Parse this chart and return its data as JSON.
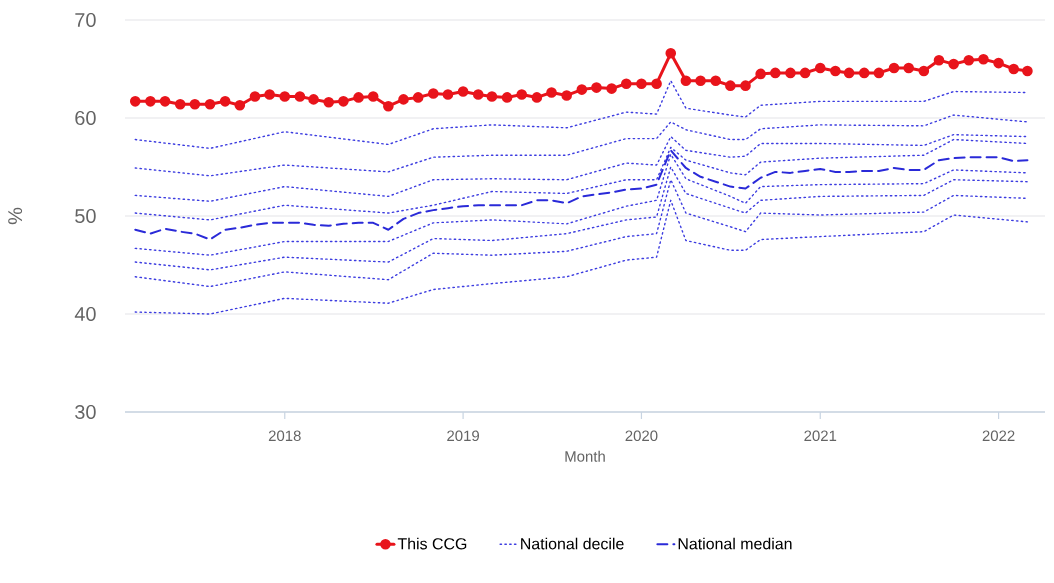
{
  "chart_data": {
    "type": "line",
    "xlabel": "Month",
    "ylabel": "%",
    "x": [
      "2017-03",
      "2017-04",
      "2017-05",
      "2017-06",
      "2017-07",
      "2017-08",
      "2017-09",
      "2017-10",
      "2017-11",
      "2017-12",
      "2018-01",
      "2018-02",
      "2018-03",
      "2018-04",
      "2018-05",
      "2018-06",
      "2018-07",
      "2018-08",
      "2018-09",
      "2018-10",
      "2018-11",
      "2018-12",
      "2019-01",
      "2019-02",
      "2019-03",
      "2019-04",
      "2019-05",
      "2019-06",
      "2019-07",
      "2019-08",
      "2019-09",
      "2019-10",
      "2019-11",
      "2019-12",
      "2020-01",
      "2020-02",
      "2020-03",
      "2020-04",
      "2020-05",
      "2020-06",
      "2020-07",
      "2020-08",
      "2020-09",
      "2020-10",
      "2020-11",
      "2020-12",
      "2021-01",
      "2021-02",
      "2021-03",
      "2021-04",
      "2021-05",
      "2021-06",
      "2021-07",
      "2021-08",
      "2021-09",
      "2021-10",
      "2021-11",
      "2021-12",
      "2022-01",
      "2022-02",
      "2022-03"
    ],
    "series": [
      {
        "name": "This CCG",
        "color": "#e8141b",
        "marker": "circle",
        "line_style": "solid",
        "values": [
          61.7,
          61.7,
          61.7,
          61.4,
          61.4,
          61.4,
          61.7,
          61.3,
          62.2,
          62.4,
          62.2,
          62.2,
          61.9,
          61.6,
          61.7,
          62.1,
          62.2,
          61.2,
          61.9,
          62.1,
          62.5,
          62.4,
          62.7,
          62.4,
          62.2,
          62.1,
          62.4,
          62.1,
          62.6,
          62.3,
          62.9,
          63.1,
          63.0,
          63.5,
          63.5,
          63.5,
          66.6,
          63.8,
          63.8,
          63.8,
          63.3,
          63.3,
          64.5,
          64.6,
          64.6,
          64.6,
          65.1,
          64.8,
          64.6,
          64.6,
          64.6,
          65.1,
          65.1,
          64.8,
          65.9,
          65.5,
          65.9,
          66.0,
          65.6,
          65.0,
          64.8
        ]
      },
      {
        "name": "National decile",
        "color": "#3c3ce0",
        "marker": "none",
        "line_style": "dotted",
        "x": [
          "2017-03",
          "2017-08",
          "2018-01",
          "2018-08",
          "2018-11",
          "2019-03",
          "2019-08",
          "2019-12",
          "2020-02",
          "2020-03",
          "2020-04",
          "2020-07",
          "2020-08",
          "2020-09",
          "2021-01",
          "2021-08",
          "2021-10",
          "2022-03"
        ],
        "values": [
          57.8,
          56.9,
          58.6,
          57.3,
          58.9,
          59.3,
          59.0,
          60.6,
          60.4,
          63.8,
          61.0,
          60.3,
          60.1,
          61.3,
          61.7,
          61.7,
          62.7,
          62.6
        ]
      },
      {
        "color": "#3c3ce0",
        "marker": "none",
        "line_style": "dotted",
        "x": [
          "2017-03",
          "2017-08",
          "2018-01",
          "2018-08",
          "2018-11",
          "2019-03",
          "2019-08",
          "2019-12",
          "2020-02",
          "2020-03",
          "2020-04",
          "2020-07",
          "2020-08",
          "2020-09",
          "2021-01",
          "2021-08",
          "2021-10",
          "2022-03"
        ],
        "values": [
          54.9,
          54.1,
          55.2,
          54.5,
          56.0,
          56.2,
          56.2,
          57.9,
          57.9,
          59.6,
          58.8,
          57.8,
          57.8,
          58.9,
          59.3,
          59.2,
          60.3,
          59.6
        ]
      },
      {
        "color": "#3c3ce0",
        "marker": "none",
        "line_style": "dotted",
        "x": [
          "2017-03",
          "2017-08",
          "2018-01",
          "2018-08",
          "2018-11",
          "2019-03",
          "2019-08",
          "2019-12",
          "2020-02",
          "2020-03",
          "2020-04",
          "2020-07",
          "2020-08",
          "2020-09",
          "2021-01",
          "2021-08",
          "2021-10",
          "2022-03"
        ],
        "values": [
          52.1,
          51.5,
          53.0,
          52.0,
          53.7,
          53.8,
          53.7,
          55.4,
          55.2,
          58.1,
          56.7,
          56.0,
          56.1,
          57.4,
          57.4,
          57.2,
          58.3,
          58.1
        ]
      },
      {
        "color": "#3c3ce0",
        "marker": "none",
        "line_style": "dotted",
        "x": [
          "2017-03",
          "2017-08",
          "2018-01",
          "2018-08",
          "2018-11",
          "2019-03",
          "2019-08",
          "2019-12",
          "2020-02",
          "2020-03",
          "2020-04",
          "2020-07",
          "2020-08",
          "2020-09",
          "2021-01",
          "2021-08",
          "2021-10",
          "2022-03"
        ],
        "values": [
          50.3,
          49.6,
          51.1,
          50.3,
          51.1,
          52.5,
          52.3,
          53.7,
          53.7,
          57.0,
          55.7,
          54.4,
          54.2,
          55.5,
          55.9,
          56.2,
          57.8,
          57.4
        ]
      },
      {
        "color": "#3c3ce0",
        "marker": "none",
        "line_style": "dotted",
        "x": [
          "2017-03",
          "2017-08",
          "2018-01",
          "2018-08",
          "2018-11",
          "2019-03",
          "2019-08",
          "2019-12",
          "2020-02",
          "2020-03",
          "2020-04",
          "2020-07",
          "2020-08",
          "2020-09",
          "2021-01",
          "2021-08",
          "2021-10",
          "2022-03"
        ],
        "values": [
          46.7,
          46.0,
          47.4,
          47.4,
          49.3,
          49.6,
          49.2,
          51.0,
          51.6,
          56.3,
          53.8,
          52.0,
          51.3,
          53.0,
          53.2,
          53.3,
          54.7,
          54.4
        ]
      },
      {
        "color": "#3c3ce0",
        "marker": "none",
        "line_style": "dotted",
        "x": [
          "2017-03",
          "2017-08",
          "2018-01",
          "2018-08",
          "2018-11",
          "2019-03",
          "2019-08",
          "2019-12",
          "2020-02",
          "2020-03",
          "2020-04",
          "2020-07",
          "2020-08",
          "2020-09",
          "2021-01",
          "2021-08",
          "2021-10",
          "2022-03"
        ],
        "values": [
          45.3,
          44.5,
          45.8,
          45.3,
          47.7,
          47.5,
          48.2,
          49.6,
          49.9,
          55.0,
          52.3,
          50.8,
          50.3,
          51.6,
          52.0,
          52.1,
          53.7,
          53.5
        ]
      },
      {
        "color": "#3c3ce0",
        "marker": "none",
        "line_style": "dotted",
        "x": [
          "2017-03",
          "2017-08",
          "2018-01",
          "2018-08",
          "2018-11",
          "2019-03",
          "2019-08",
          "2019-12",
          "2020-02",
          "2020-03",
          "2020-04",
          "2020-07",
          "2020-08",
          "2020-09",
          "2021-01",
          "2021-08",
          "2021-10",
          "2022-03"
        ],
        "values": [
          43.8,
          42.8,
          44.3,
          43.5,
          46.2,
          46.0,
          46.4,
          47.9,
          48.2,
          53.7,
          50.3,
          48.9,
          48.4,
          50.3,
          50.1,
          50.4,
          52.1,
          51.8
        ]
      },
      {
        "color": "#3c3ce0",
        "marker": "none",
        "line_style": "dotted",
        "x": [
          "2017-03",
          "2017-08",
          "2018-01",
          "2018-08",
          "2018-11",
          "2019-03",
          "2019-08",
          "2019-12",
          "2020-02",
          "2020-03",
          "2020-04",
          "2020-07",
          "2020-08",
          "2020-09",
          "2021-01",
          "2021-08",
          "2021-10",
          "2022-03"
        ],
        "values": [
          40.2,
          40.0,
          41.6,
          41.1,
          42.5,
          43.1,
          43.8,
          45.5,
          45.8,
          51.6,
          47.5,
          46.5,
          46.5,
          47.6,
          47.9,
          48.4,
          50.1,
          49.4
        ]
      },
      {
        "name": "National median",
        "color": "#2a2ad8",
        "marker": "none",
        "line_style": "dashed",
        "values": [
          48.6,
          48.2,
          48.7,
          48.4,
          48.2,
          47.6,
          48.6,
          48.8,
          49.1,
          49.3,
          49.3,
          49.3,
          49.1,
          49.0,
          49.2,
          49.3,
          49.3,
          48.6,
          49.7,
          50.3,
          50.6,
          50.8,
          51.0,
          51.1,
          51.1,
          51.1,
          51.1,
          51.6,
          51.6,
          51.3,
          52.0,
          52.2,
          52.4,
          52.7,
          52.8,
          53.2,
          56.7,
          54.9,
          54.0,
          53.5,
          53.0,
          52.8,
          53.9,
          54.5,
          54.4,
          54.6,
          54.8,
          54.5,
          54.5,
          54.6,
          54.6,
          54.9,
          54.7,
          54.7,
          55.7,
          55.9,
          56.0,
          56.0,
          56.0,
          55.6,
          55.7
        ]
      }
    ],
    "xlim": [
      "2017-02-08",
      "2022-04-06"
    ],
    "ylim": [
      30,
      70
    ],
    "xticks": [
      "2018",
      "2019",
      "2020",
      "2021",
      "2022"
    ],
    "yticks": [
      30,
      40,
      50,
      60,
      70
    ],
    "grid": "y",
    "legend": "bottom"
  }
}
